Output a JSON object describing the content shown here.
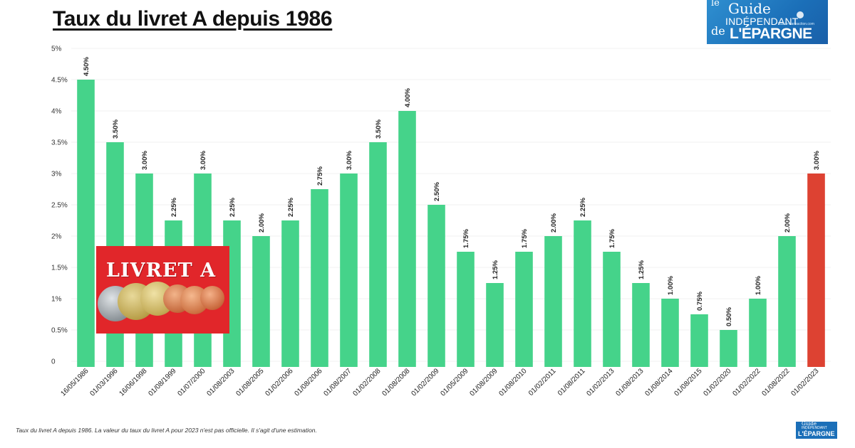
{
  "title": "Taux du livret A depuis 1986",
  "colors": {
    "bar": "#45d38a",
    "highlight": "#dd4232",
    "grid": "#f2f2f2",
    "logo": "#1b6fb8",
    "inset_bg": "#e1262a"
  },
  "logo": {
    "line1": "le",
    "line2": "Guide",
    "line3": "INDÉPENDANT",
    "line4": "de",
    "line5": "L'ÉPARGNE",
    "url": "france-transaction.com"
  },
  "logo_small": {
    "line1": "Guide",
    "line2": "INDÉPENDANT",
    "line3": "L'ÉPARGNE"
  },
  "inset": {
    "text": "LIVRET A"
  },
  "footnote": "Taux du livret A depuis 1986. La valeur du taux du livret A pour 2023 n'est pas officielle. Il s'agit d'une estimation.",
  "chart_data": {
    "type": "bar",
    "title": "Taux du livret A depuis 1986",
    "xlabel": "",
    "ylabel": "",
    "ylim": [
      0,
      5
    ],
    "yticks": [
      0,
      0.5,
      1,
      1.5,
      2,
      2.5,
      3,
      3.5,
      4,
      4.5,
      5
    ],
    "ytick_labels": [
      "0",
      "0.5%",
      "1%",
      "1.5%",
      "2%",
      "2.5%",
      "3%",
      "3.5%",
      "4%",
      "4.5%",
      "5%"
    ],
    "grid": true,
    "categories": [
      "16/05/1986",
      "01/03/1996",
      "16/06/1998",
      "01/08/1999",
      "01/07/2000",
      "01/08/2003",
      "01/08/2005",
      "01/02/2006",
      "01/08/2006",
      "01/08/2007",
      "01/02/2008",
      "01/08/2008",
      "01/02/2009",
      "01/05/2009",
      "01/08/2009",
      "01/08/2010",
      "01/02/2011",
      "01/08/2011",
      "01/02/2013",
      "01/08/2013",
      "01/08/2014",
      "01/08/2015",
      "01/02/2020",
      "01/02/2022",
      "01/08/2022",
      "01/02/2023"
    ],
    "values": [
      4.5,
      3.5,
      3.0,
      2.25,
      3.0,
      2.25,
      2.0,
      2.25,
      2.75,
      3.0,
      3.5,
      4.0,
      2.5,
      1.75,
      1.25,
      1.75,
      2.0,
      2.25,
      1.75,
      1.25,
      1.0,
      0.75,
      0.5,
      1.0,
      2.0,
      3.0
    ],
    "value_labels": [
      "4.50%",
      "3.50%",
      "3.00%",
      "2.25%",
      "3.00%",
      "2.25%",
      "2.00%",
      "2.25%",
      "2.75%",
      "3.00%",
      "3.50%",
      "4.00%",
      "2.50%",
      "1.75%",
      "1.25%",
      "1.75%",
      "2.00%",
      "2.25%",
      "1.75%",
      "1.25%",
      "1.00%",
      "0.75%",
      "0.50%",
      "1.00%",
      "2.00%",
      "3.00%"
    ],
    "highlight_index": 25,
    "highlight_note": "estimation"
  }
}
